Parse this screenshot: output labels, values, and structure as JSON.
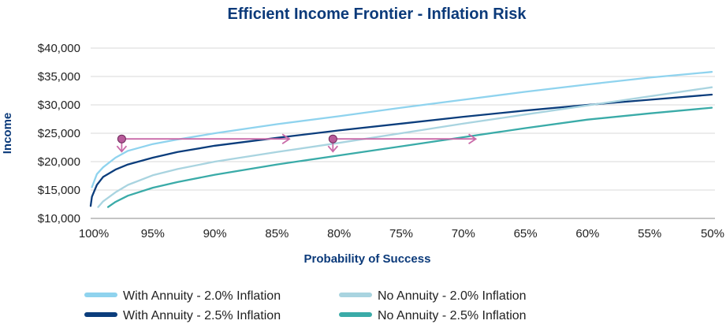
{
  "chart_data": {
    "type": "line",
    "title": "Efficient Income Frontier - Inflation Risk",
    "xlabel": "Probability of Success",
    "ylabel": "Income",
    "x_ticks": [
      "100%",
      "95%",
      "90%",
      "85%",
      "80%",
      "75%",
      "70%",
      "65%",
      "60%",
      "55%",
      "50%"
    ],
    "y_ticks": [
      "$10,000",
      "$15,000",
      "$20,000",
      "$25,000",
      "$30,000",
      "$35,000",
      "$40,000"
    ],
    "xlim": [
      100,
      50
    ],
    "ylim": [
      10000,
      40000
    ],
    "grid": "horizontal",
    "legend_position": "bottom",
    "series": [
      {
        "name": "With Annuity - 2.0% Inflation",
        "color": "#8fd3ee",
        "x": [
          99.9,
          99.5,
          99,
          98,
          97,
          95,
          93,
          90,
          85,
          80,
          75,
          70,
          65,
          60,
          55,
          50
        ],
        "y": [
          15500,
          17800,
          19000,
          20700,
          21900,
          23100,
          23900,
          25000,
          26600,
          28000,
          29500,
          30900,
          32300,
          33600,
          34800,
          35800
        ]
      },
      {
        "name": "With Annuity - 2.5% Inflation",
        "color": "#0b3d7c",
        "x": [
          100,
          99.9,
          99.5,
          99,
          98,
          97,
          95,
          93,
          90,
          85,
          80,
          75,
          70,
          65,
          60,
          55,
          50
        ],
        "y": [
          12200,
          13800,
          15900,
          17300,
          18600,
          19500,
          20700,
          21700,
          22800,
          24200,
          25500,
          26700,
          27900,
          29000,
          30000,
          30900,
          31800
        ]
      },
      {
        "name": "No Annuity - 2.0% Inflation",
        "color": "#a9d4e0",
        "x": [
          99.4,
          99,
          98,
          97,
          95,
          93,
          90,
          85,
          80,
          75,
          70,
          65,
          60,
          55,
          50
        ],
        "y": [
          12000,
          13000,
          14600,
          15900,
          17600,
          18700,
          20000,
          21700,
          23300,
          25000,
          26700,
          28300,
          29900,
          31500,
          33100
        ]
      },
      {
        "name": "No Annuity - 2.5% Inflation",
        "color": "#3aaba8",
        "x": [
          98.6,
          98,
          97,
          95,
          93,
          90,
          85,
          80,
          75,
          70,
          65,
          60,
          55,
          50
        ],
        "y": [
          12000,
          12900,
          14000,
          15400,
          16400,
          17700,
          19500,
          21100,
          22700,
          24300,
          25900,
          27400,
          28500,
          29500
        ]
      }
    ],
    "annotations": [
      {
        "type": "arrow",
        "from_x": 97.5,
        "to_x": 84,
        "y": 24000
      },
      {
        "type": "arrow",
        "from_x": 80.5,
        "to_x": 69,
        "y": 24000
      },
      {
        "type": "marker",
        "x": 97.5,
        "y": 24000
      },
      {
        "type": "marker",
        "x": 80.5,
        "y": 24000
      },
      {
        "type": "arrow_down",
        "x": 97.5,
        "y": 24000
      },
      {
        "type": "arrow_down",
        "x": 80.5,
        "y": 24000
      }
    ],
    "annotation_color": "#c96aa8",
    "marker_fill": "#b85a9a"
  }
}
